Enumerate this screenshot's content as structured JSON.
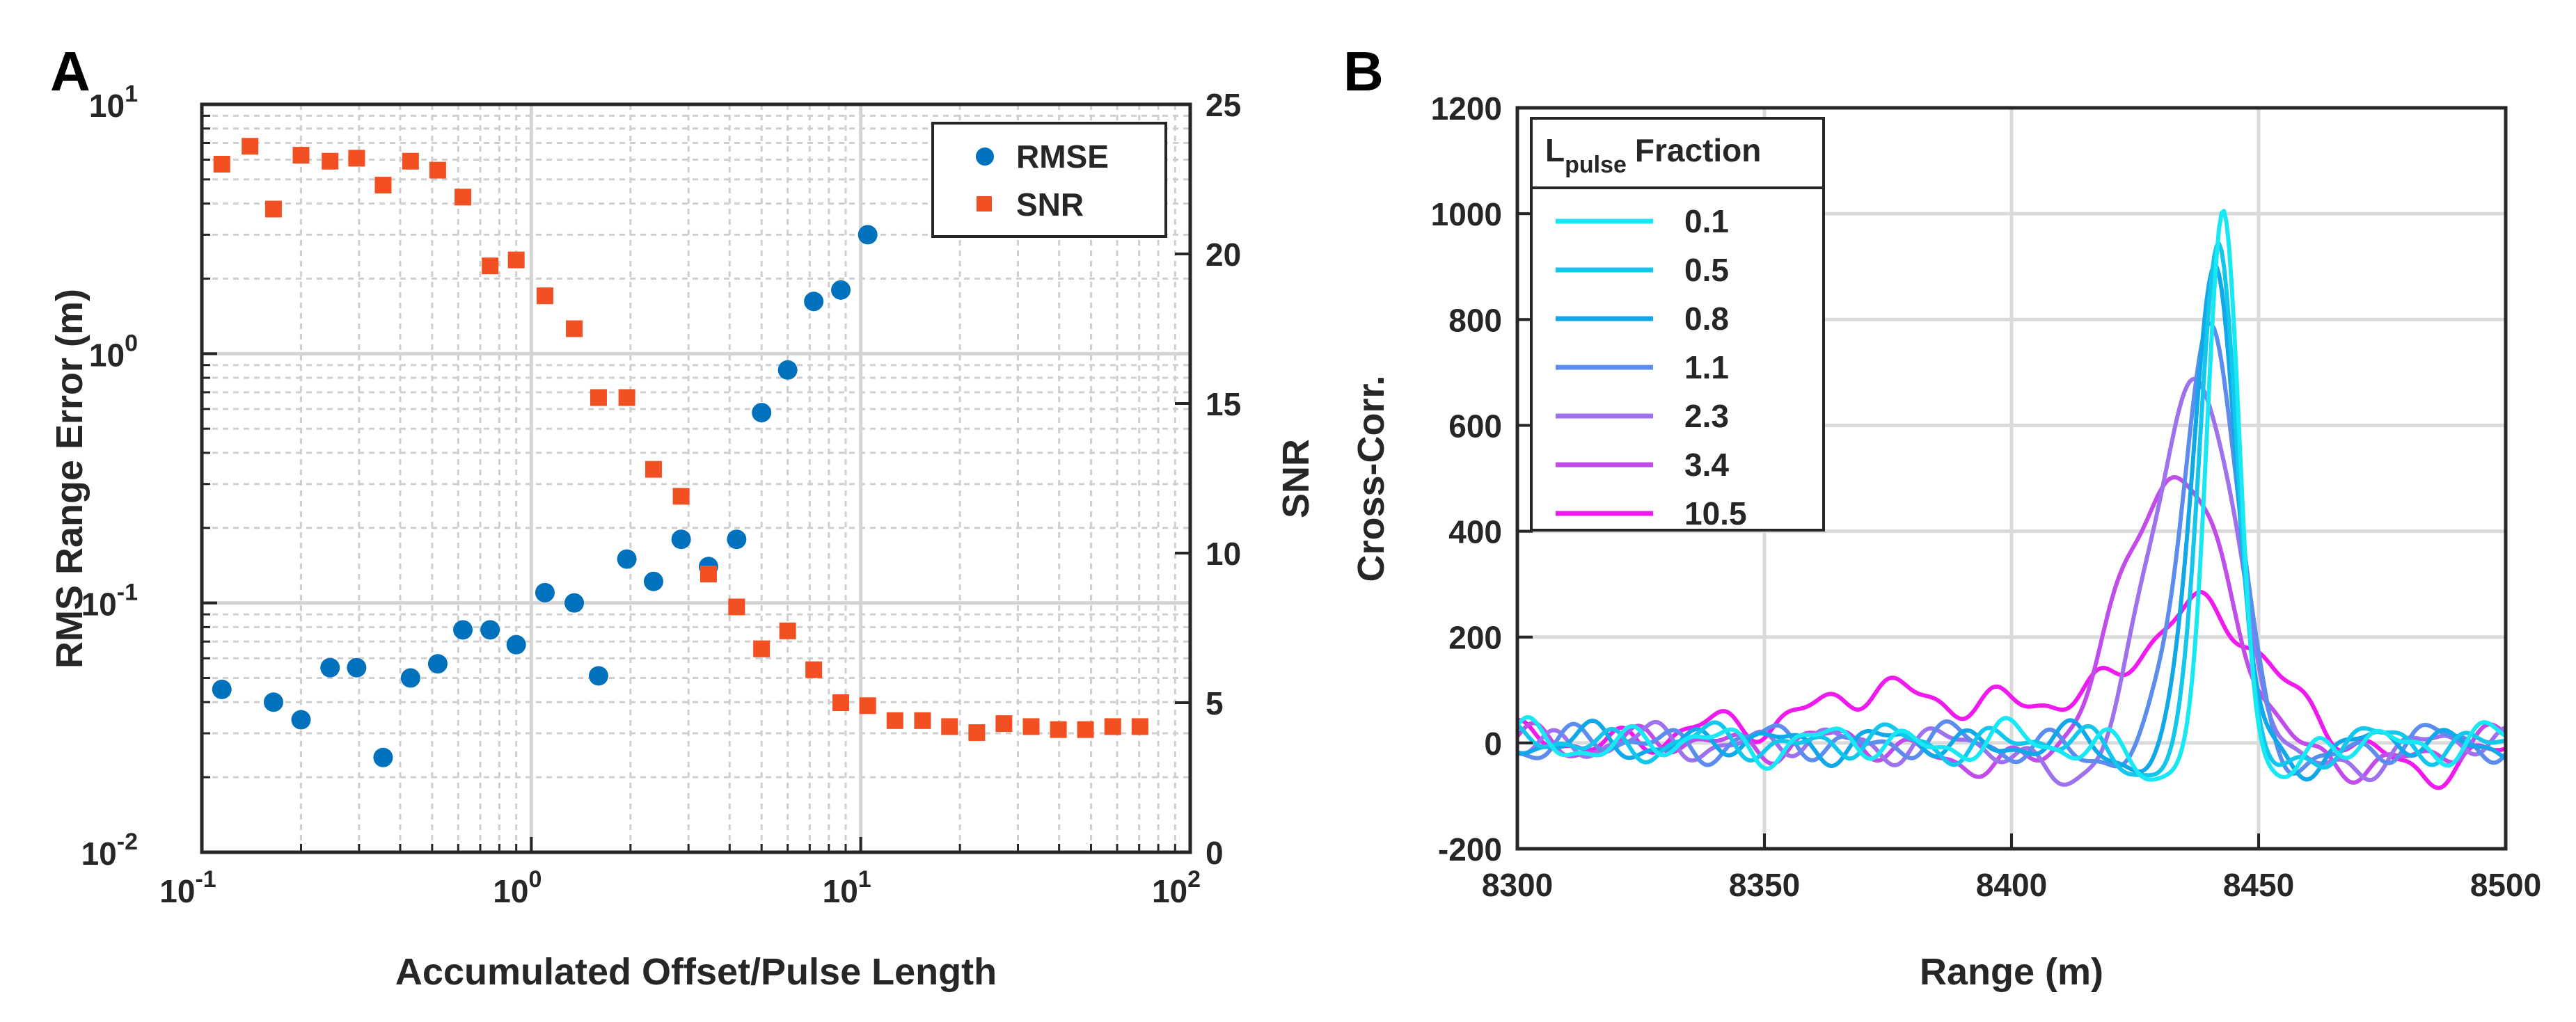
{
  "chart_data": [
    {
      "panel": "A",
      "type": "scatter",
      "xlabel": "Accumulated Offset/Pulse Length",
      "ylabel": "RMS Range Error (m)",
      "y2label": "SNR",
      "xscale": "log",
      "yscale": "log",
      "xlim": [
        0.1,
        100
      ],
      "ylim": [
        0.01,
        10
      ],
      "y2lim": [
        0,
        25
      ],
      "x_ticks": [
        {
          "v": 0.1,
          "base": "10",
          "exp": "-1"
        },
        {
          "v": 1,
          "base": "10",
          "exp": "0"
        },
        {
          "v": 10,
          "base": "10",
          "exp": "1"
        },
        {
          "v": 100,
          "base": "10",
          "exp": "2"
        }
      ],
      "y_ticks": [
        {
          "v": 0.01,
          "base": "10",
          "exp": "-2"
        },
        {
          "v": 0.1,
          "base": "10",
          "exp": "-1"
        },
        {
          "v": 1,
          "base": "10",
          "exp": "0"
        },
        {
          "v": 10,
          "base": "10",
          "exp": "1"
        }
      ],
      "y2_ticks": [
        "0",
        "5",
        "10",
        "15",
        "20",
        "25"
      ],
      "grid": true,
      "legend": {
        "position": "top-right",
        "items": [
          "RMSE",
          "SNR"
        ]
      },
      "series": [
        {
          "name": "RMSE",
          "axis": "left",
          "marker": "circle",
          "color": "#0072BD",
          "x": [
            0.115,
            0.165,
            0.2,
            0.245,
            0.295,
            0.355,
            0.43,
            0.52,
            0.62,
            0.75,
            0.9,
            1.1,
            1.35,
            1.6,
            1.95,
            2.35,
            2.85,
            3.45,
            4.2,
            5.0,
            6.0,
            7.2,
            8.7,
            10.5
          ],
          "y": [
            0.045,
            0.04,
            0.034,
            0.055,
            0.055,
            0.024,
            0.05,
            0.057,
            0.078,
            0.078,
            0.068,
            0.11,
            0.1,
            0.051,
            0.15,
            0.122,
            0.18,
            0.14,
            0.18,
            0.58,
            0.86,
            1.62,
            1.8,
            3.0
          ]
        },
        {
          "name": "SNR",
          "axis": "right",
          "marker": "square",
          "color": "#F25022",
          "x": [
            0.115,
            0.14,
            0.165,
            0.2,
            0.245,
            0.295,
            0.355,
            0.43,
            0.52,
            0.62,
            0.75,
            0.9,
            1.1,
            1.35,
            1.6,
            1.95,
            2.35,
            2.85,
            3.45,
            4.2,
            5.0,
            6.0,
            7.2,
            8.7,
            10.5,
            12.7,
            15.4,
            18.6,
            22.5,
            27.2,
            32.9,
            39.8,
            48.1,
            58.2,
            70.4
          ],
          "y": [
            23.0,
            23.6,
            21.5,
            23.3,
            23.1,
            23.2,
            22.3,
            23.1,
            22.8,
            21.9,
            19.6,
            19.8,
            18.6,
            17.5,
            15.2,
            15.2,
            12.8,
            11.9,
            9.3,
            8.2,
            6.8,
            7.4,
            6.1,
            5.0,
            4.9,
            4.4,
            4.4,
            4.2,
            4.0,
            4.3,
            4.2,
            4.1,
            4.1,
            4.2,
            4.2
          ]
        }
      ]
    },
    {
      "panel": "B",
      "type": "line",
      "xlabel": "Range (m)",
      "ylabel": "Cross-Corr.",
      "xlim": [
        8300,
        8500
      ],
      "ylim": [
        -200,
        1200
      ],
      "x_ticks": [
        "8300",
        "8350",
        "8400",
        "8450",
        "8500"
      ],
      "y_ticks": [
        "-200",
        "0",
        "200",
        "400",
        "600",
        "800",
        "1000",
        "1200"
      ],
      "grid": true,
      "legend": {
        "position": "top-left",
        "title_main": "L",
        "title_sub": "pulse",
        "title_rest": "Fraction"
      },
      "series": [
        {
          "name": "0.1",
          "color": "#18E8F4",
          "peak_x": 8443,
          "peak_y": 1000,
          "width": 3.2,
          "phase": 0.0,
          "noise_amp": 45,
          "noise_offset": 0,
          "valley_y": -110
        },
        {
          "name": "0.5",
          "color": "#12C6EC",
          "peak_x": 8442,
          "peak_y": 960,
          "width": 3.6,
          "phase": 1.1,
          "noise_amp": 42,
          "noise_offset": 0,
          "valley_y": -80
        },
        {
          "name": "0.8",
          "color": "#10A8E8",
          "peak_x": 8441,
          "peak_y": 920,
          "width": 4.2,
          "phase": 2.3,
          "noise_amp": 40,
          "noise_offset": 0,
          "valley_y": -60
        },
        {
          "name": "1.1",
          "color": "#5C8CEE",
          "peak_x": 8440,
          "peak_y": 805,
          "width": 5.5,
          "phase": 3.6,
          "noise_amp": 42,
          "noise_offset": 0,
          "valley_y": -70
        },
        {
          "name": "2.3",
          "color": "#9E72EC",
          "peak_x": 8437,
          "peak_y": 700,
          "width": 8,
          "phase": 4.7,
          "noise_amp": 40,
          "noise_offset": 0,
          "valley_y": -100
        },
        {
          "name": "3.4",
          "color": "#C24CEA",
          "peak_x": 8433,
          "peak_y": 500,
          "width": 11,
          "phase": 5.9,
          "noise_amp": 38,
          "noise_offset": 0,
          "valley_y": -90
        },
        {
          "name": "10.5",
          "color": "#F01AEF",
          "peak_x": 8440,
          "peak_y": 220,
          "width": 14,
          "phase": 0.6,
          "noise_amp": 40,
          "noise_offset": 60,
          "valley_y": -80
        }
      ]
    }
  ]
}
